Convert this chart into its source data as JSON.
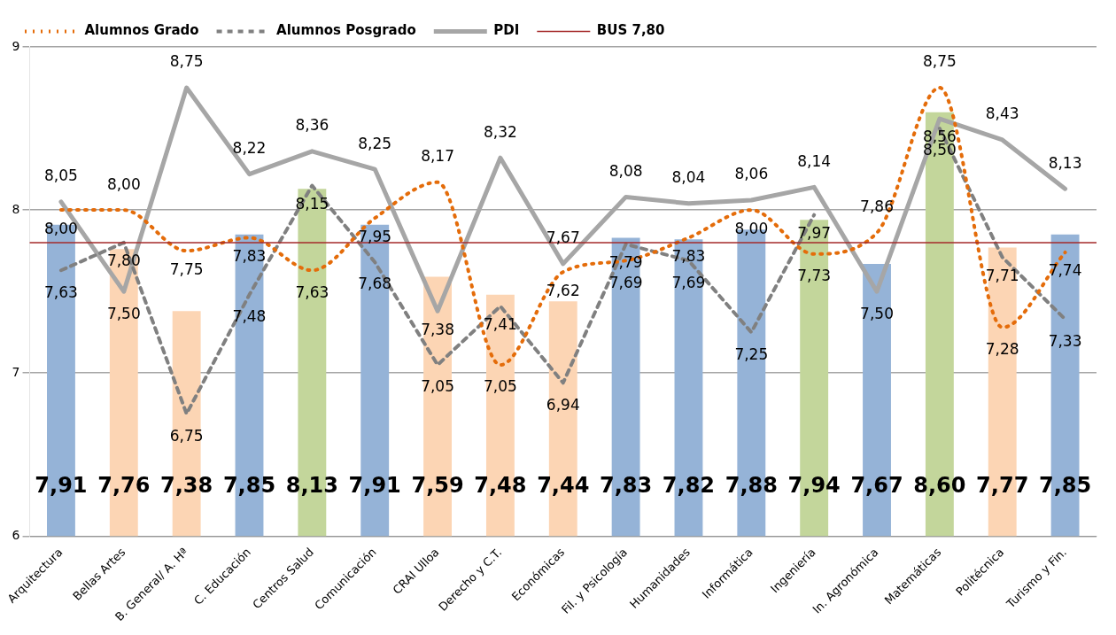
{
  "chart_data": {
    "type": "bar",
    "categories": [
      "Arquitectura",
      "Bellas Artes",
      "B. General/ A. Hª",
      "C. Educación",
      "Centros Salud",
      "Comunicación",
      "CRAI Ulloa",
      "Derecho y C.T.",
      "Económicas",
      "Fil. y Psicología",
      "Humanidades",
      "Informática",
      "Ingeniería",
      "In. Agronómica",
      "Matemáticas",
      "Politécnica",
      "Turismo y Fin."
    ],
    "series": [
      {
        "colors": [
          "#95b3d7",
          "#fcd5b4",
          "#fcd5b4",
          "#95b3d7",
          "#c3d69b",
          "#95b3d7",
          "#fcd5b4",
          "#fcd5b4",
          "#fcd5b4",
          "#95b3d7",
          "#95b3d7",
          "#95b3d7",
          "#c3d69b",
          "#95b3d7",
          "#c3d69b",
          "#fcd5b4",
          "#95b3d7"
        ],
        "values": [
          7.91,
          7.76,
          7.38,
          7.85,
          8.13,
          7.91,
          7.59,
          7.48,
          7.44,
          7.83,
          7.82,
          7.88,
          7.94,
          7.67,
          8.6,
          7.77,
          7.85
        ],
        "value_labels": [
          "7,91",
          "7,76",
          "7,38",
          "7,85",
          "8,13",
          "7,91",
          "7,59",
          "7,48",
          "7,44",
          "7,83",
          "7,82",
          "7,88",
          "7,94",
          "7,67",
          "8,60",
          "7,77",
          "7,85"
        ]
      },
      {
        "type": "line",
        "name": "Alumnos Grado",
        "color": "#e46c0a",
        "line_style": "dotted",
        "values": [
          8.0,
          8.0,
          7.75,
          7.83,
          7.63,
          7.95,
          8.17,
          7.05,
          7.62,
          7.69,
          7.83,
          8.0,
          7.73,
          7.86,
          8.75,
          7.28,
          7.74
        ],
        "value_labels": [
          "8,00",
          "8,00",
          "7,75",
          "7,83",
          "7,63",
          "7,95",
          "8,17",
          "7,05",
          "7,62",
          "7,69",
          "7,83",
          "8,00",
          "7,73",
          "7,86",
          "8,75",
          "7,28",
          "7,74"
        ]
      },
      {
        "type": "line",
        "name": "Alumnos Posgrado",
        "color": "#808080",
        "line_style": "dashed",
        "values": [
          7.63,
          7.8,
          6.75,
          7.48,
          8.15,
          7.68,
          7.05,
          7.41,
          6.94,
          7.79,
          7.69,
          7.25,
          7.97,
          null,
          8.5,
          7.71,
          7.33
        ],
        "value_labels": [
          "7,63",
          "7,80",
          "6,75",
          "7,48",
          "8,15",
          "7,68",
          "7,05",
          "7,41",
          "6,94",
          "7,79",
          "7,69",
          "7,25",
          "7,97",
          null,
          "8,50",
          "7,71",
          "7,33"
        ]
      },
      {
        "type": "line",
        "name": "PDI",
        "color": "#a6a6a6",
        "line_style": "solid",
        "values": [
          8.05,
          7.5,
          8.75,
          8.22,
          8.36,
          8.25,
          7.38,
          8.32,
          7.67,
          8.08,
          8.04,
          8.06,
          8.14,
          7.5,
          8.56,
          8.43,
          8.13
        ],
        "value_labels": [
          "8,05",
          "7,50",
          "8,75",
          "8,22",
          "8,36",
          "8,25",
          "7,38",
          "8,32",
          "7,67",
          "8,08",
          "8,04",
          "8,06",
          "8,14",
          "7,50",
          "8,56",
          "8,43",
          "8,13"
        ]
      }
    ],
    "ref_lines": [
      {
        "axis": "y",
        "value": 7.8,
        "label": "BUS 7,80",
        "color": "#a52a2a"
      }
    ],
    "ylim": [
      6,
      9
    ],
    "yticks": [
      6,
      7,
      8,
      9
    ],
    "grid": "y",
    "legend": "top left",
    "marker": "none"
  }
}
